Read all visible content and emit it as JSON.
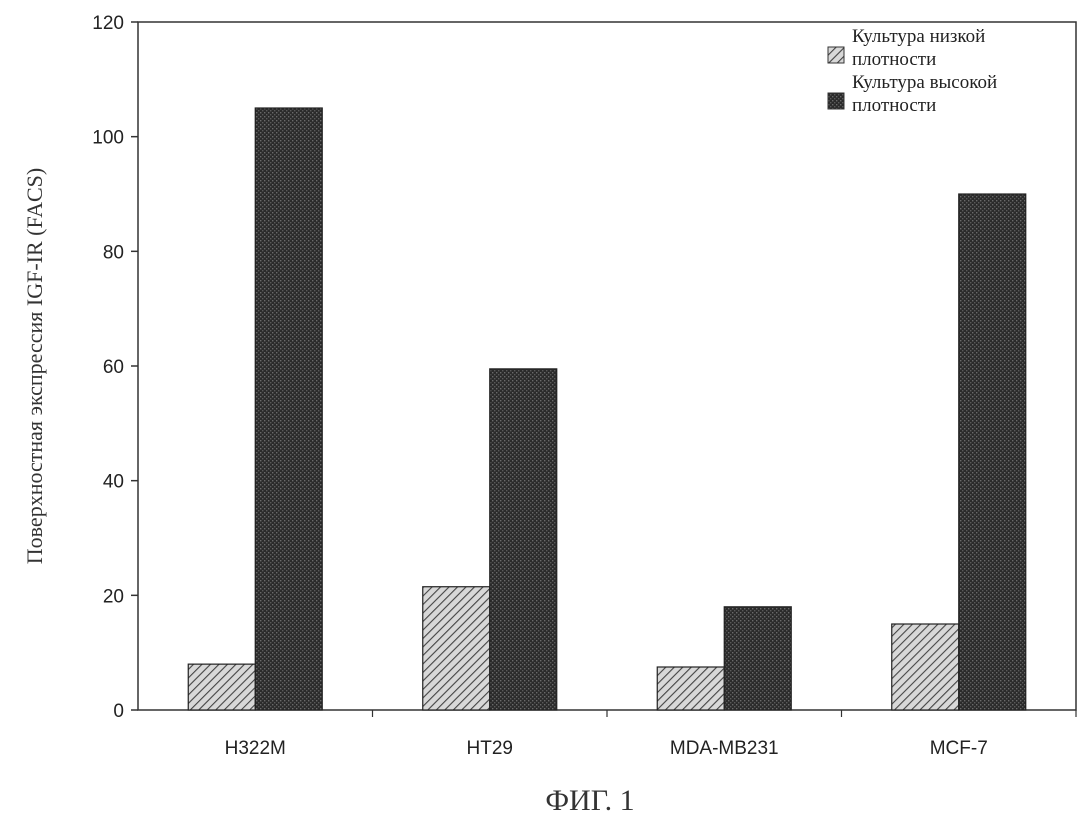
{
  "chart_data": {
    "type": "bar",
    "title": "",
    "caption": "ФИГ. 1",
    "xlabel": "",
    "ylabel": "Поверхностная экспрессия IGF-IR (FACS)",
    "ylim": [
      0,
      120
    ],
    "yticks": [
      0,
      20,
      40,
      60,
      80,
      100,
      120
    ],
    "grid": false,
    "legend_position": "top-right",
    "categories": [
      "H322M",
      "HT29",
      "MDA-MB231",
      "MCF-7"
    ],
    "series": [
      {
        "name_lines": [
          "Культура низкой",
          "плотности"
        ],
        "values": [
          8,
          21.5,
          7.5,
          15
        ],
        "pattern": "hatch",
        "color": "#555555"
      },
      {
        "name_lines": [
          "Культура высокой",
          "плотности"
        ],
        "values": [
          105,
          59.5,
          18,
          90
        ],
        "pattern": "dense",
        "color": "#2a2a2a"
      }
    ]
  }
}
